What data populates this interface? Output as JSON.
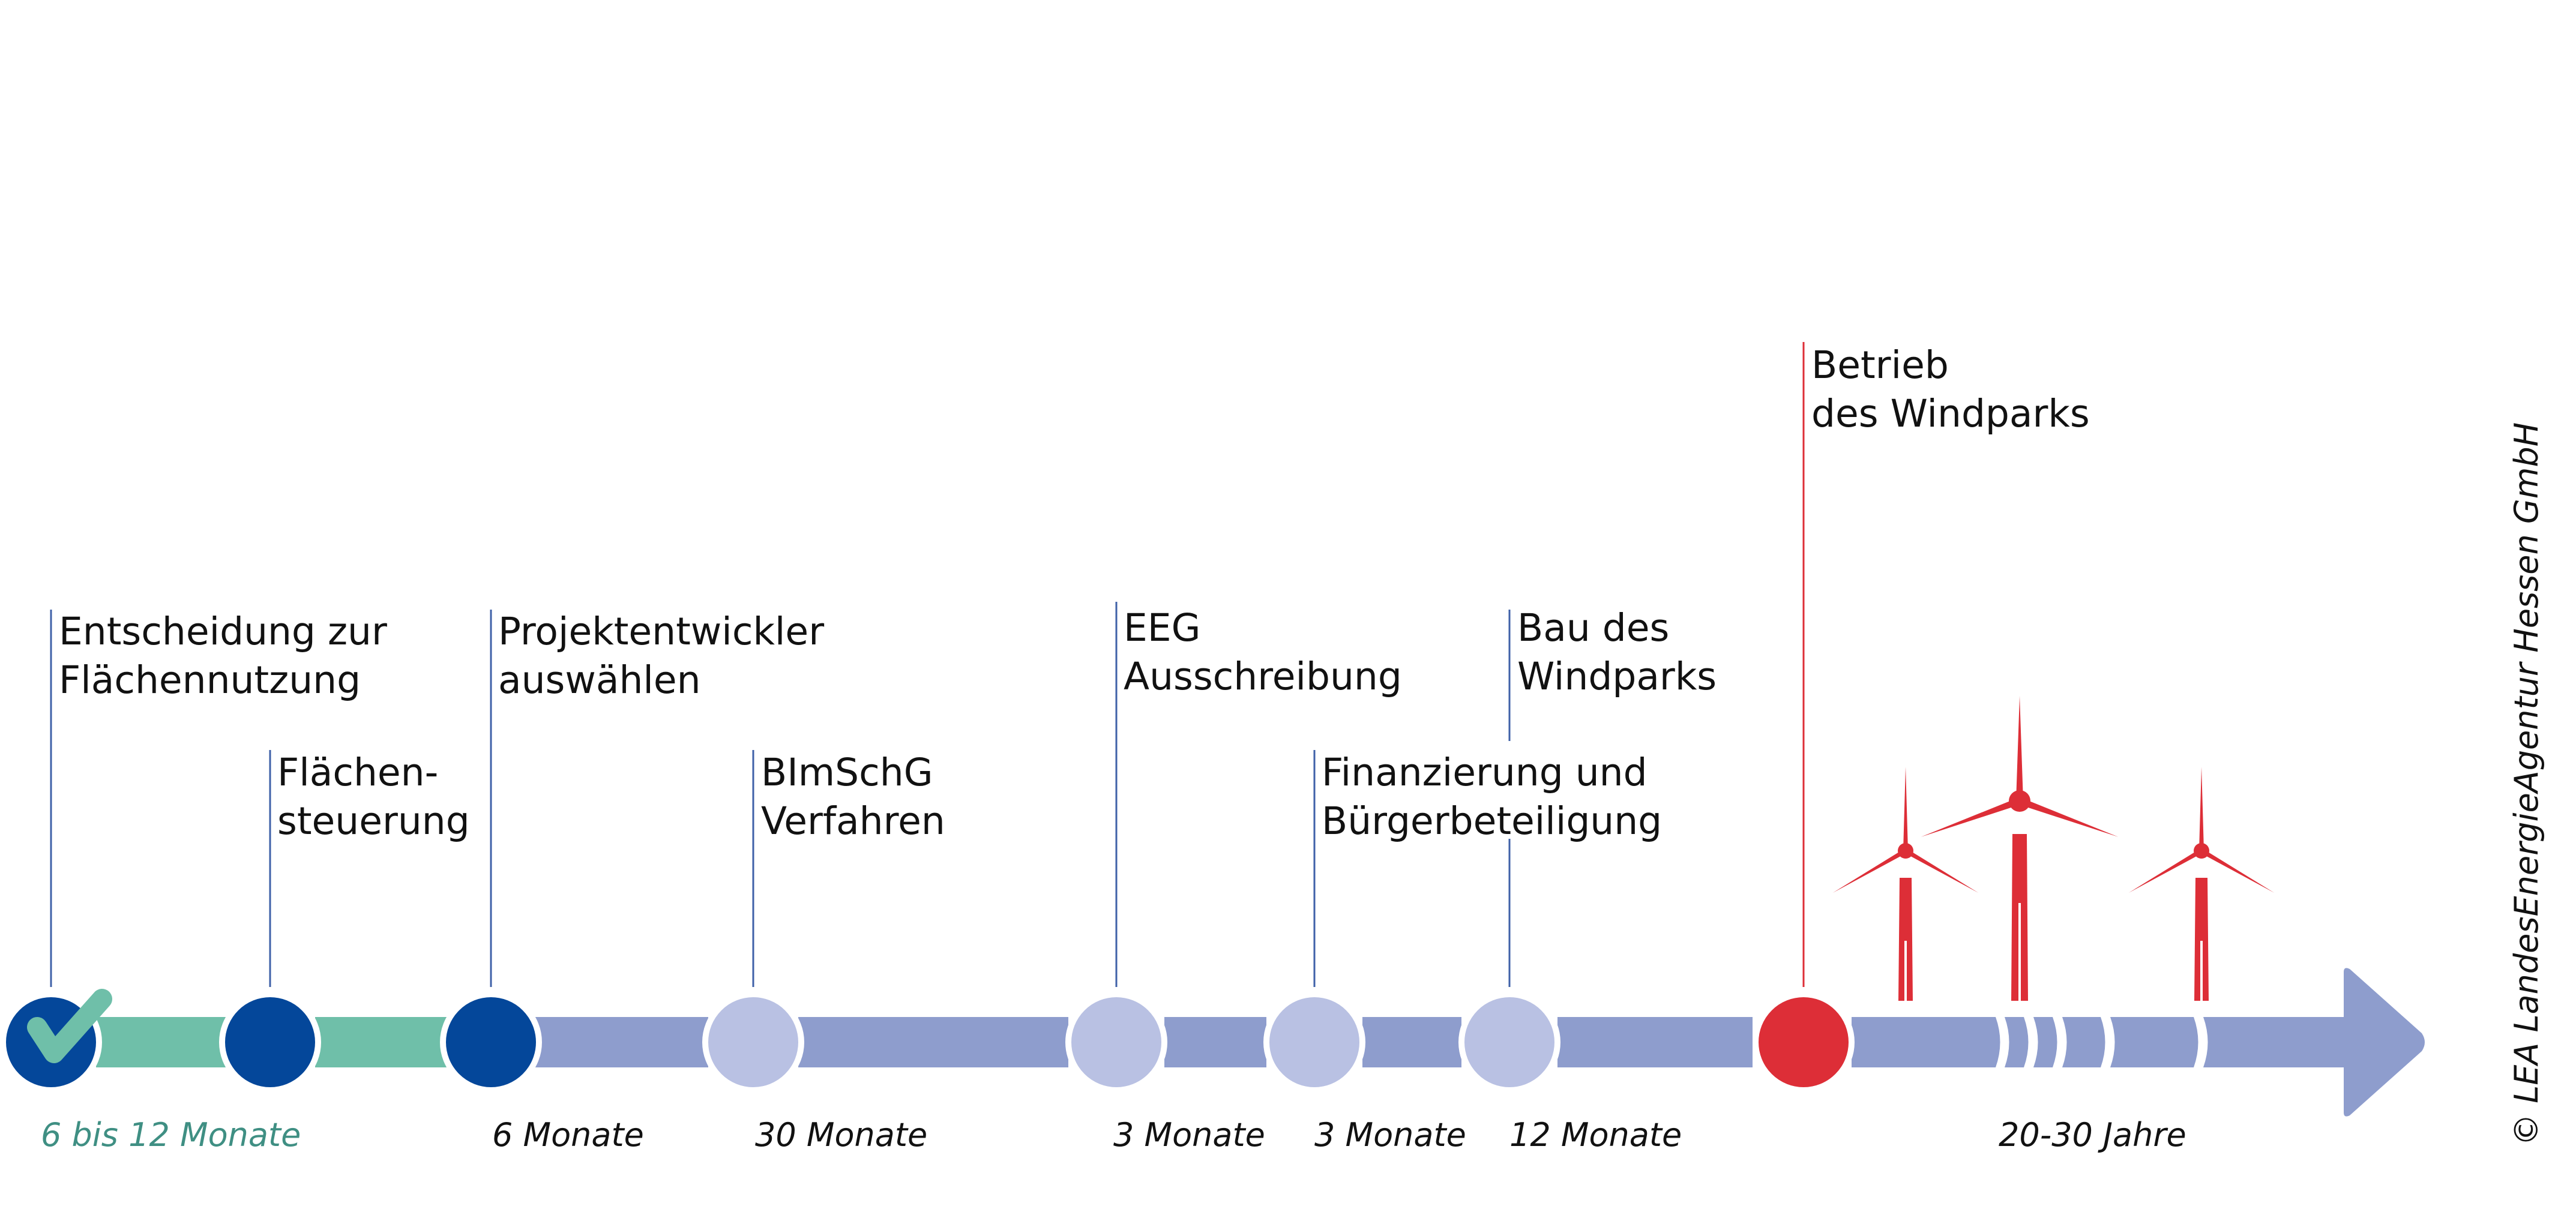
{
  "colors": {
    "track": "#8e9dcd",
    "track_done": "#6fbfa9",
    "milestone_done": "#04479a",
    "milestone_future": "#b9c1e3",
    "milestone_operation": "#dd2e37",
    "check": "#6fbfa9",
    "line_blue": "#3f61a8",
    "line_red": "#dd2e37",
    "turbine": "#dd2e37",
    "text": "#111111",
    "duration_done": "#3f8f83"
  },
  "icons": {
    "check": "check-icon",
    "turbine": "wind-turbine-icon",
    "arrow": "arrow-head-icon"
  },
  "steps": [
    {
      "label": "Entscheidung zur\nFlächennutzung",
      "status": "done-checked"
    },
    {
      "label": "Flächen-\nsteuerung",
      "status": "done"
    },
    {
      "label": "Projektentwickler\nauswählen",
      "status": "done"
    },
    {
      "label": "BImSchG\nVerfahren",
      "status": "future"
    },
    {
      "label": "EEG\nAusschreibung",
      "status": "future"
    },
    {
      "label": "Finanzierung und\nBürgerbeteiligung",
      "status": "future"
    },
    {
      "label": "Bau des\nWindparks",
      "status": "future"
    },
    {
      "label": "Betrieb\ndes Windparks",
      "status": "operation"
    }
  ],
  "durations": [
    {
      "text": "6 bis 12 Monate"
    },
    {
      "text": "6 Monate"
    },
    {
      "text": "30 Monate"
    },
    {
      "text": "3 Monate"
    },
    {
      "text": "3 Monate"
    },
    {
      "text": "12 Monate"
    },
    {
      "text": "20-30 Jahre"
    }
  ],
  "copyright": "© LEA LandesEnergieAgentur Hessen GmbH"
}
